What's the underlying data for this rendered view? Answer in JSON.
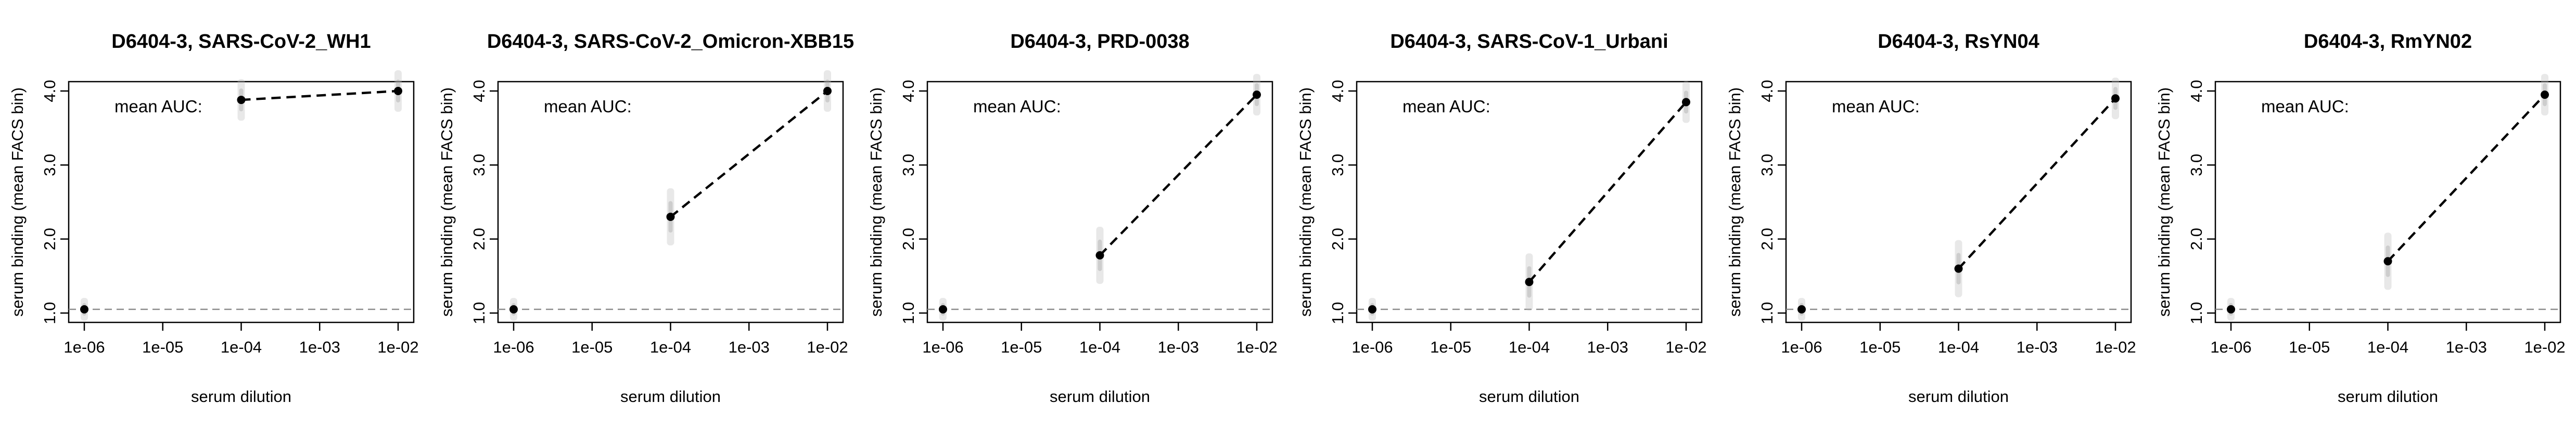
{
  "chart_data": [
    {
      "type": "line",
      "title": "D6404-3, SARS-CoV-2_WH1",
      "xlabel": "serum dilution",
      "ylabel": "serum binding (mean FACS bin)",
      "annotation": "mean AUC:",
      "x_scale": "log",
      "xlim": [
        1e-06,
        0.01
      ],
      "ylim": [
        1.0,
        4.0
      ],
      "x_ticks": [
        "1e-06",
        "1e-05",
        "1e-04",
        "1e-03",
        "1e-02"
      ],
      "y_ticks": [
        "1.0",
        "2.0",
        "3.0",
        "4.0"
      ],
      "baseline": 1.05,
      "points": [
        {
          "x": 1e-06,
          "y": 1.05
        },
        {
          "x": 0.0001,
          "y": 3.88
        },
        {
          "x": 0.01,
          "y": 4.0
        }
      ],
      "grid": false
    },
    {
      "type": "line",
      "title": "D6404-3, SARS-CoV-2_Omicron-XBB15",
      "xlabel": "serum dilution",
      "ylabel": "serum binding (mean FACS bin)",
      "annotation": "mean AUC:",
      "x_scale": "log",
      "xlim": [
        1e-06,
        0.01
      ],
      "ylim": [
        1.0,
        4.0
      ],
      "x_ticks": [
        "1e-06",
        "1e-05",
        "1e-04",
        "1e-03",
        "1e-02"
      ],
      "y_ticks": [
        "1.0",
        "2.0",
        "3.0",
        "4.0"
      ],
      "baseline": 1.05,
      "points": [
        {
          "x": 1e-06,
          "y": 1.05
        },
        {
          "x": 0.0001,
          "y": 2.3
        },
        {
          "x": 0.01,
          "y": 4.0
        }
      ],
      "grid": false
    },
    {
      "type": "line",
      "title": "D6404-3, PRD-0038",
      "xlabel": "serum dilution",
      "ylabel": "serum binding (mean FACS bin)",
      "annotation": "mean AUC:",
      "x_scale": "log",
      "xlim": [
        1e-06,
        0.01
      ],
      "ylim": [
        1.0,
        4.0
      ],
      "x_ticks": [
        "1e-06",
        "1e-05",
        "1e-04",
        "1e-03",
        "1e-02"
      ],
      "y_ticks": [
        "1.0",
        "2.0",
        "3.0",
        "4.0"
      ],
      "baseline": 1.05,
      "points": [
        {
          "x": 1e-06,
          "y": 1.05
        },
        {
          "x": 0.0001,
          "y": 1.78
        },
        {
          "x": 0.01,
          "y": 3.95
        }
      ],
      "grid": false
    },
    {
      "type": "line",
      "title": "D6404-3, SARS-CoV-1_Urbani",
      "xlabel": "serum dilution",
      "ylabel": "serum binding (mean FACS bin)",
      "annotation": "mean AUC:",
      "x_scale": "log",
      "xlim": [
        1e-06,
        0.01
      ],
      "ylim": [
        1.0,
        4.0
      ],
      "x_ticks": [
        "1e-06",
        "1e-05",
        "1e-04",
        "1e-03",
        "1e-02"
      ],
      "y_ticks": [
        "1.0",
        "2.0",
        "3.0",
        "4.0"
      ],
      "baseline": 1.05,
      "points": [
        {
          "x": 1e-06,
          "y": 1.05
        },
        {
          "x": 0.0001,
          "y": 1.42
        },
        {
          "x": 0.01,
          "y": 3.85
        }
      ],
      "grid": false
    },
    {
      "type": "line",
      "title": "D6404-3, RsYN04",
      "xlabel": "serum dilution",
      "ylabel": "serum binding (mean FACS bin)",
      "annotation": "mean AUC:",
      "x_scale": "log",
      "xlim": [
        1e-06,
        0.01
      ],
      "ylim": [
        1.0,
        4.0
      ],
      "x_ticks": [
        "1e-06",
        "1e-05",
        "1e-04",
        "1e-03",
        "1e-02"
      ],
      "y_ticks": [
        "1.0",
        "2.0",
        "3.0",
        "4.0"
      ],
      "baseline": 1.05,
      "points": [
        {
          "x": 1e-06,
          "y": 1.05
        },
        {
          "x": 0.0001,
          "y": 1.6
        },
        {
          "x": 0.01,
          "y": 3.9
        }
      ],
      "grid": false
    },
    {
      "type": "line",
      "title": "D6404-3, RmYN02",
      "xlabel": "serum dilution",
      "ylabel": "serum binding (mean FACS bin)",
      "annotation": "mean AUC:",
      "x_scale": "log",
      "xlim": [
        1e-06,
        0.01
      ],
      "ylim": [
        1.0,
        4.0
      ],
      "x_ticks": [
        "1e-06",
        "1e-05",
        "1e-04",
        "1e-03",
        "1e-02"
      ],
      "y_ticks": [
        "1.0",
        "2.0",
        "3.0",
        "4.0"
      ],
      "baseline": 1.05,
      "points": [
        {
          "x": 1e-06,
          "y": 1.05
        },
        {
          "x": 0.0001,
          "y": 1.7
        },
        {
          "x": 0.01,
          "y": 3.95
        }
      ],
      "grid": false
    }
  ]
}
